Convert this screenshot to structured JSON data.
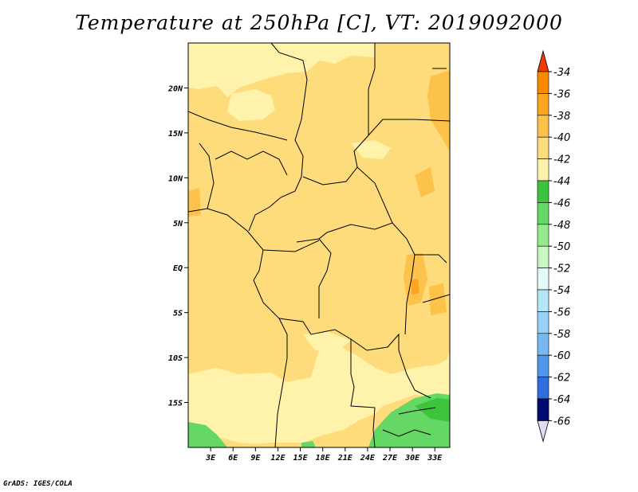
{
  "title": "Temperature at 250hPa [C], VT: 2019092000",
  "credit": "GrADS: IGES/COLA",
  "map": {
    "lon_range": [
      0,
      35
    ],
    "lat_range": [
      -20,
      25
    ],
    "lon_ticks": [
      {
        "value": 3,
        "label": "3E"
      },
      {
        "value": 6,
        "label": "6E"
      },
      {
        "value": 9,
        "label": "9E"
      },
      {
        "value": 12,
        "label": "12E"
      },
      {
        "value": 15,
        "label": "15E"
      },
      {
        "value": 18,
        "label": "18E"
      },
      {
        "value": 21,
        "label": "21E"
      },
      {
        "value": 24,
        "label": "24E"
      },
      {
        "value": 27,
        "label": "27E"
      },
      {
        "value": 30,
        "label": "30E"
      },
      {
        "value": 33,
        "label": "33E"
      }
    ],
    "lat_ticks": [
      {
        "value": 20,
        "label": "20N"
      },
      {
        "value": 15,
        "label": "15N"
      },
      {
        "value": 10,
        "label": "10N"
      },
      {
        "value": 5,
        "label": "5N"
      },
      {
        "value": 0,
        "label": "EQ"
      },
      {
        "value": -5,
        "label": "5S"
      },
      {
        "value": -10,
        "label": "10S"
      },
      {
        "value": -15,
        "label": "15S"
      }
    ]
  },
  "colorbar": {
    "levels": [
      {
        "label": "-34",
        "color": "#f05a00"
      },
      {
        "label": "-36",
        "color": "#f88a00"
      },
      {
        "label": "-38",
        "color": "#fba520"
      },
      {
        "label": "-40",
        "color": "#fcc24a"
      },
      {
        "label": "-42",
        "color": "#fedc7c"
      },
      {
        "label": "-44",
        "color": "#fff3ac"
      },
      {
        "label": "-46",
        "color": "#3cc43c"
      },
      {
        "label": "-48",
        "color": "#64d764"
      },
      {
        "label": "-50",
        "color": "#96ea8e"
      },
      {
        "label": "-52",
        "color": "#c8f7c2"
      },
      {
        "label": "-54",
        "color": "#e4fafa"
      },
      {
        "label": "-56",
        "color": "#b4e6f8"
      },
      {
        "label": "-58",
        "color": "#96d2f8"
      },
      {
        "label": "-60",
        "color": "#78b8f2"
      },
      {
        "label": "-62",
        "color": "#5096ec"
      },
      {
        "label": "-64",
        "color": "#2e6ee0"
      },
      {
        "label": "-66",
        "color": "#1450c0"
      }
    ],
    "top_color": "#f03a00",
    "bottom_color": "#000a70",
    "beyond_bottom_color": "#dcdcfa"
  },
  "colors": {
    "base": "#fedc7c",
    "light": "#fff3ac",
    "warm": "#fcc24a",
    "warmest": "#fba520",
    "cold": "#64d764",
    "colder": "#3cc43c"
  }
}
